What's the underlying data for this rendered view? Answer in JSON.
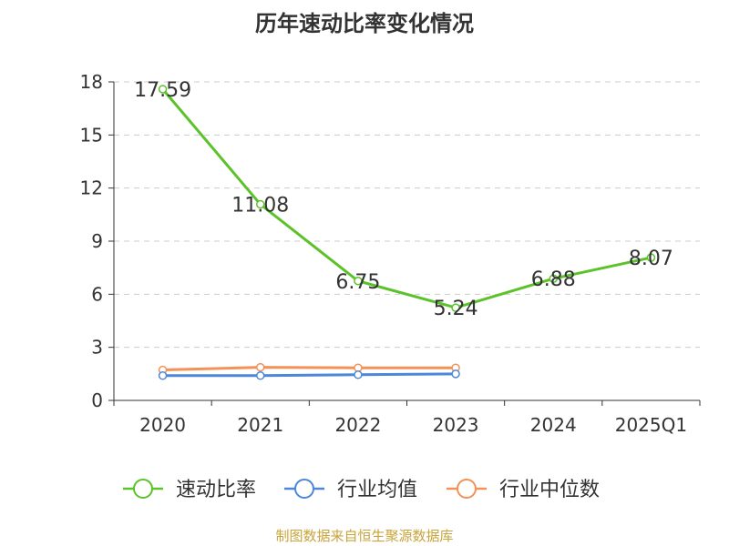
{
  "title": "历年速动比率变化情况",
  "source": "制图数据来自恒生聚源数据库",
  "colors": {
    "axis": "#333333",
    "grid": "#cccccc",
    "text": "#333333"
  },
  "chart_data": {
    "type": "line",
    "title": "历年速动比率变化情况",
    "categories": [
      "2020",
      "2021",
      "2022",
      "2023",
      "2024",
      "2025Q1"
    ],
    "ylim": [
      0,
      18
    ],
    "yticks": [
      0,
      3,
      6,
      9,
      12,
      15,
      18
    ],
    "grid": true,
    "legend_position": "bottom",
    "series": [
      {
        "name": "速动比率",
        "color": "#5cc22a",
        "values": [
          17.59,
          11.08,
          6.75,
          5.24,
          6.88,
          8.07
        ],
        "data_labels": [
          "17.59",
          "11.08",
          "6.75",
          "5.24",
          "6.88",
          "8.07"
        ]
      },
      {
        "name": "行业均值",
        "color": "#4c87d9",
        "values": [
          1.4,
          1.4,
          1.45,
          1.5,
          null,
          null
        ]
      },
      {
        "name": "行业中位数",
        "color": "#f39158",
        "values": [
          1.72,
          1.87,
          1.84,
          1.84,
          null,
          null
        ]
      }
    ]
  }
}
